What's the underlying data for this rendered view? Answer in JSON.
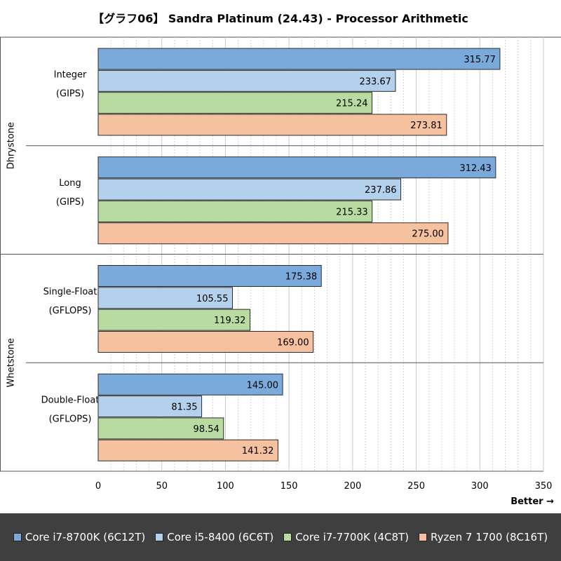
{
  "chart_data": {
    "type": "bar",
    "orientation": "horizontal",
    "title": "【グラフ06】 Sandra Platinum (24.43) - Processor Arithmetic",
    "xlim": [
      0,
      350
    ],
    "xticks": [
      0,
      50,
      100,
      150,
      200,
      250,
      300,
      350
    ],
    "direction_label": "Better →",
    "groups": [
      {
        "name": "Dhrystone",
        "categories": [
          {
            "label1": "Integer",
            "label2": "(GIPS)",
            "values": [
              315.77,
              233.67,
              215.24,
              273.81
            ]
          },
          {
            "label1": "Long",
            "label2": "(GIPS)",
            "values": [
              312.43,
              237.86,
              215.33,
              275.0
            ]
          }
        ]
      },
      {
        "name": "Whetstone",
        "categories": [
          {
            "label1": "Single-Float",
            "label2": "(GFLOPS)",
            "values": [
              175.38,
              105.55,
              119.32,
              169.0
            ]
          },
          {
            "label1": "Double-Float",
            "label2": "(GFLOPS)",
            "values": [
              145.0,
              81.35,
              98.54,
              141.32
            ]
          }
        ]
      }
    ],
    "series": [
      {
        "name": "Core i7-8700K (6C12T)",
        "color": "#7aaadc"
      },
      {
        "name": "Core i5-8400 (6C6T)",
        "color": "#b3d0ec"
      },
      {
        "name": "Core i7-7700K (4C8T)",
        "color": "#b7dba0"
      },
      {
        "name": "Ryzen 7 1700 (8C16T)",
        "color": "#f6c19f"
      }
    ]
  }
}
